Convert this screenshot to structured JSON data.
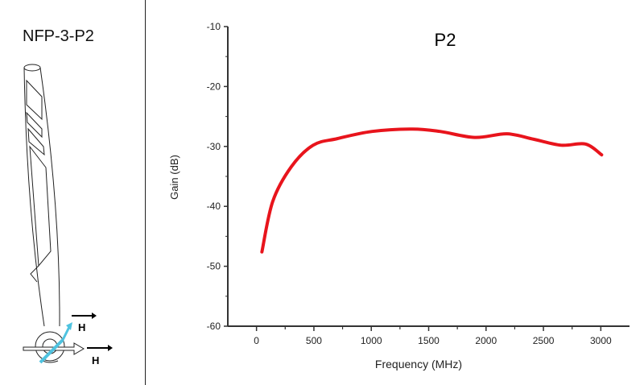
{
  "left_panel": {
    "title": "NFP-3-P2",
    "field_label_top": "H",
    "field_label_bottom": "H",
    "accent_color": "#4fc3e0"
  },
  "chart_data": {
    "type": "line",
    "title": "P2",
    "xlabel": "Frequency (MHz)",
    "ylabel": "Gain (dB)",
    "xlim": [
      -250,
      3250
    ],
    "ylim": [
      -60,
      -10
    ],
    "xticks": [
      0,
      500,
      1000,
      1500,
      2000,
      2500,
      3000
    ],
    "yticks": [
      -10,
      -20,
      -30,
      -40,
      -50,
      -60
    ],
    "grid": false,
    "series": [
      {
        "color": "#e8141c",
        "x": [
          47,
          141,
          303,
          493,
          704,
          1007,
          1359,
          1599,
          1902,
          2183,
          2415,
          2655,
          2866,
          3007
        ],
        "y": [
          -47.6,
          -39.2,
          -33.4,
          -29.8,
          -28.7,
          -27.5,
          -27.1,
          -27.5,
          -28.5,
          -27.9,
          -28.8,
          -29.8,
          -29.6,
          -31.4
        ]
      }
    ]
  }
}
